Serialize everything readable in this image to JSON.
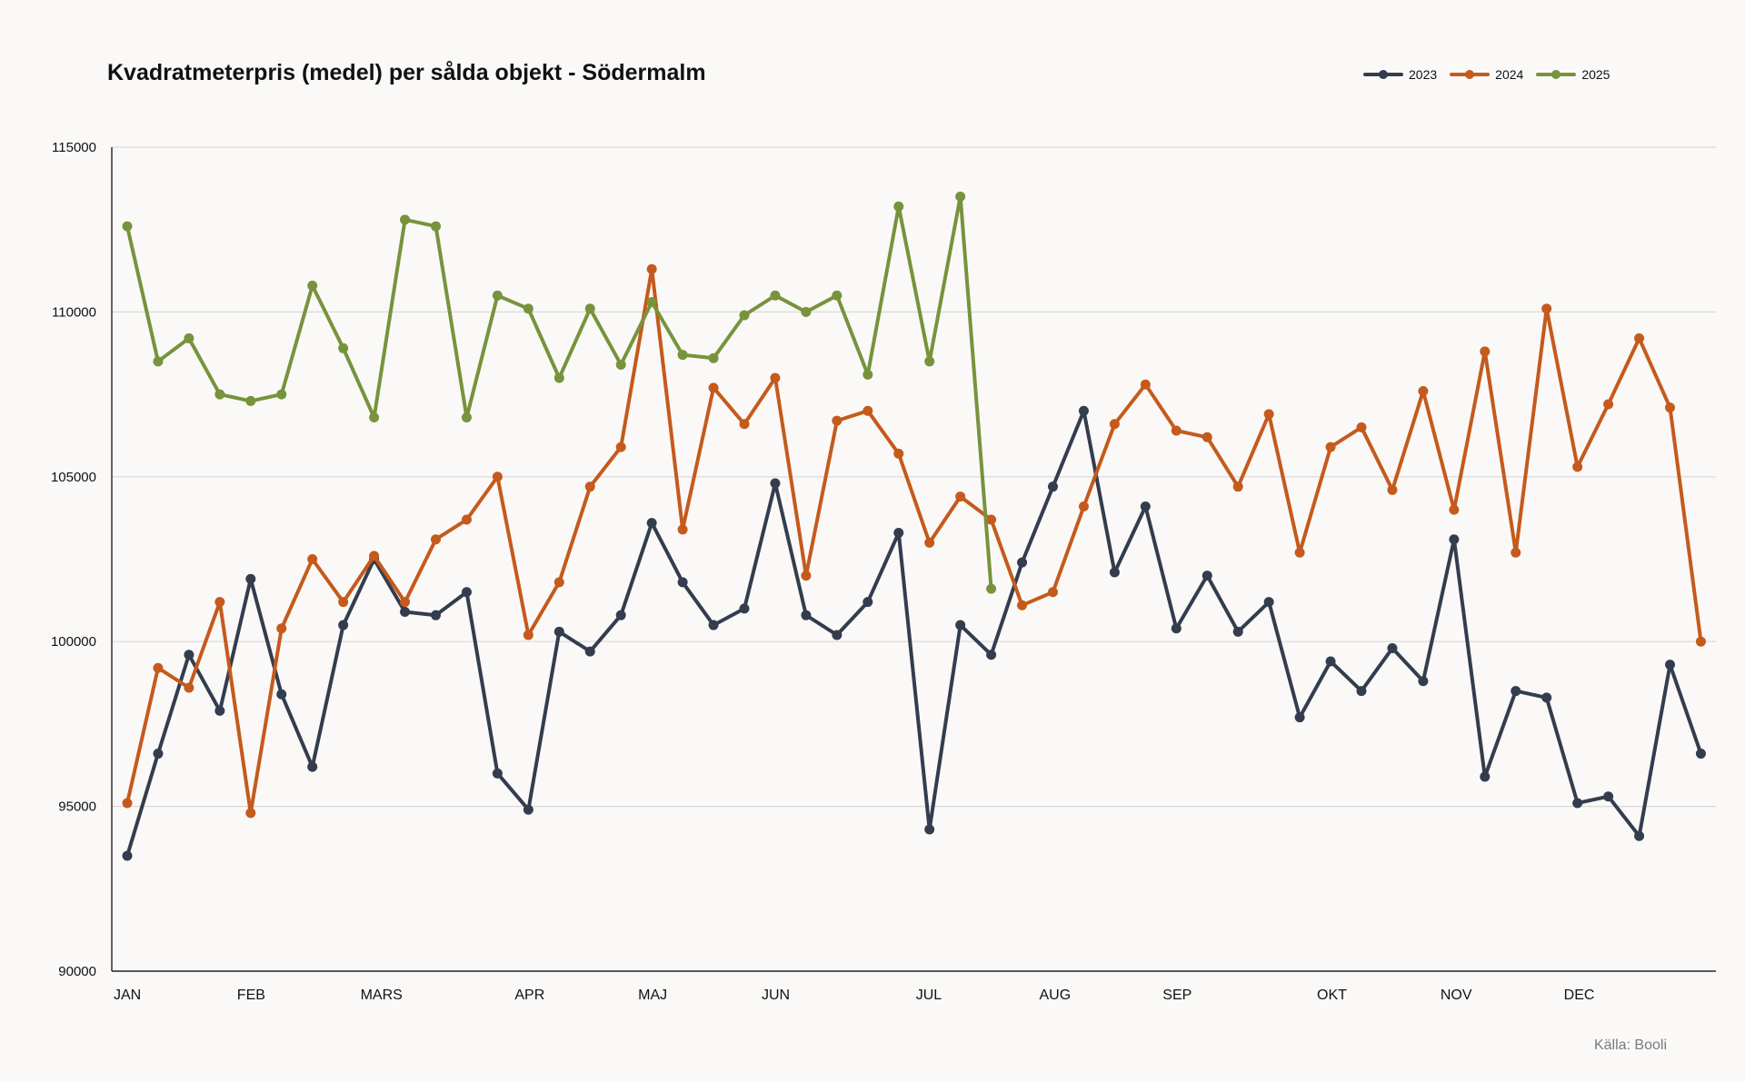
{
  "chart_data": {
    "type": "line",
    "title": "Kvadratmeterpris (medel) per sålda objekt - Södermalm",
    "source": "Källa: Booli",
    "ylim": [
      90000,
      115000
    ],
    "y_ticks": [
      "90000",
      "95000",
      "100000",
      "105000",
      "110000",
      "115000"
    ],
    "y_tick_values": [
      90000,
      95000,
      100000,
      105000,
      110000,
      115000
    ],
    "x_tick_labels": [
      {
        "label": "JAN",
        "index": 0
      },
      {
        "label": "FEB",
        "index": 4
      },
      {
        "label": "MARS",
        "index": 8
      },
      {
        "label": "APR",
        "index": 13
      },
      {
        "label": "MAJ",
        "index": 17
      },
      {
        "label": "JUN",
        "index": 21
      },
      {
        "label": "JUL",
        "index": 26
      },
      {
        "label": "AUG",
        "index": 30
      },
      {
        "label": "SEP",
        "index": 34
      },
      {
        "label": "OKT",
        "index": 39
      },
      {
        "label": "NOV",
        "index": 43
      },
      {
        "label": "DEC",
        "index": 47
      }
    ],
    "num_points": 52,
    "grid": "horizontal",
    "legend_position": "top-right",
    "series": [
      {
        "name": "2023",
        "color": "#333d4e",
        "values": [
          93500,
          96600,
          99600,
          97900,
          101900,
          98400,
          96200,
          100500,
          102500,
          100900,
          100800,
          101500,
          96000,
          94900,
          100300,
          99700,
          100800,
          103600,
          101800,
          100500,
          101000,
          104800,
          100800,
          100200,
          101200,
          103300,
          94300,
          100500,
          99600,
          102400,
          104700,
          107000,
          102100,
          104100,
          100400,
          102000,
          100300,
          101200,
          97700,
          99400,
          98500,
          99800,
          98800,
          103100,
          95900,
          98500,
          98300,
          95100,
          95300,
          94100,
          99300,
          96600
        ]
      },
      {
        "name": "2024",
        "color": "#c55a1c",
        "values": [
          95100,
          99200,
          98600,
          101200,
          94800,
          100400,
          102500,
          101200,
          102600,
          101200,
          103100,
          103700,
          105000,
          100200,
          101800,
          104700,
          105900,
          111300,
          103400,
          107700,
          106600,
          108000,
          102000,
          106700,
          107000,
          105700,
          103000,
          104400,
          103700,
          101100,
          101500,
          104100,
          106600,
          107800,
          106400,
          106200,
          104700,
          106900,
          102700,
          105900,
          106500,
          104600,
          107600,
          104000,
          108800,
          102700,
          110100,
          105300,
          107200,
          109200,
          107100,
          100000
        ]
      },
      {
        "name": "2025",
        "color": "#77933c",
        "values": [
          112600,
          108500,
          109200,
          107500,
          107300,
          107500,
          110800,
          108900,
          106800,
          112800,
          112600,
          106800,
          110500,
          110100,
          108000,
          110100,
          108400,
          110300,
          108700,
          108600,
          109900,
          110500,
          110000,
          110500,
          108100,
          113200,
          108500,
          113500,
          101600
        ]
      }
    ]
  }
}
